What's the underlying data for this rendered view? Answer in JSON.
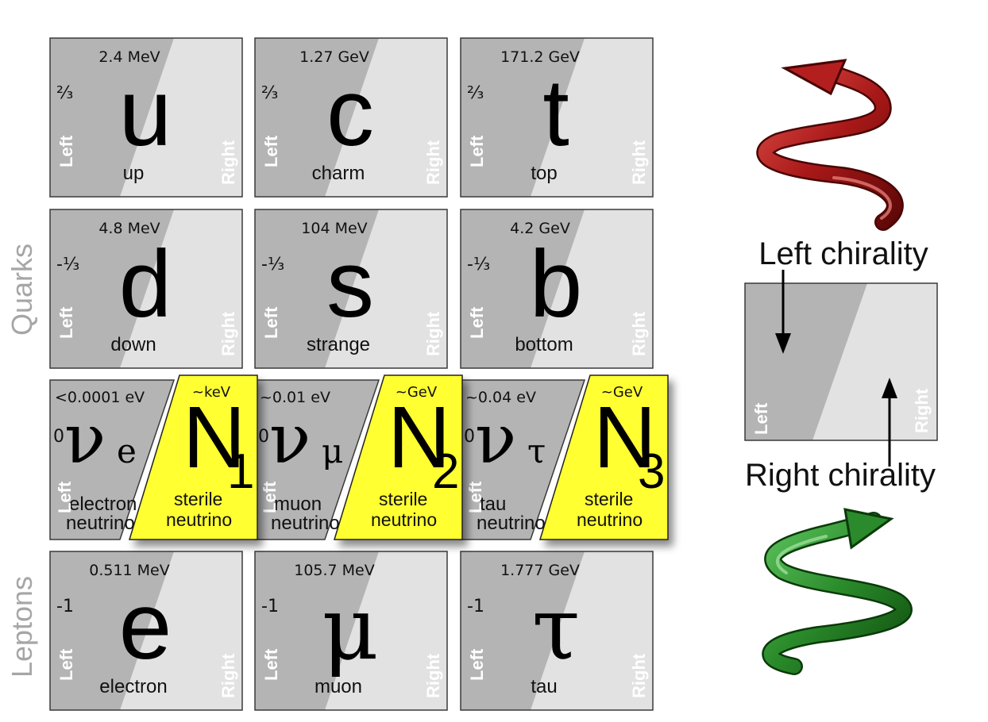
{
  "side_labels": {
    "quarks": "Quarks",
    "leptons": "Leptons"
  },
  "chirality_labels": {
    "left": "Left",
    "right": "Right"
  },
  "quarks": [
    {
      "symbol": "u",
      "name": "up",
      "mass": "2.4 MeV",
      "charge": "²⁄₃"
    },
    {
      "symbol": "c",
      "name": "charm",
      "mass": "1.27 GeV",
      "charge": "²⁄₃"
    },
    {
      "symbol": "t",
      "name": "top",
      "mass": "171.2 GeV",
      "charge": "²⁄₃"
    },
    {
      "symbol": "d",
      "name": "down",
      "mass": "4.8 MeV",
      "charge": "-¹⁄₃"
    },
    {
      "symbol": "s",
      "name": "strange",
      "mass": "104 MeV",
      "charge": "-¹⁄₃"
    },
    {
      "symbol": "b",
      "name": "bottom",
      "mass": "4.2 GeV",
      "charge": "-¹⁄₃"
    }
  ],
  "neutrinos": [
    {
      "symbol": "ν",
      "subscript": "e",
      "mass": "<0.0001 eV",
      "charge": "0",
      "name_line1": "electron",
      "name_line2": "neutrino"
    },
    {
      "symbol": "ν",
      "subscript": "μ",
      "mass": "~0.01 eV",
      "charge": "0",
      "name_line1": "muon",
      "name_line2": "neutrino"
    },
    {
      "symbol": "ν",
      "subscript": "τ",
      "mass": "~0.04 eV",
      "charge": "0",
      "name_line1": "tau",
      "name_line2": "neutrino"
    }
  ],
  "sterile_neutrinos": [
    {
      "symbol": "N",
      "subscript": "1",
      "mass": "~keV",
      "name_line1": "sterile",
      "name_line2": "neutrino"
    },
    {
      "symbol": "N",
      "subscript": "2",
      "mass": "~GeV",
      "name_line1": "sterile",
      "name_line2": "neutrino"
    },
    {
      "symbol": "N",
      "subscript": "3",
      "mass": "~GeV",
      "name_line1": "sterile",
      "name_line2": "neutrino"
    }
  ],
  "leptons": [
    {
      "symbol": "e",
      "name": "electron",
      "mass": "0.511 MeV",
      "charge": "-1"
    },
    {
      "symbol": "μ",
      "name": "muon",
      "mass": "105.7 MeV",
      "charge": "-1"
    },
    {
      "symbol": "τ",
      "name": "tau",
      "mass": "1.777 GeV",
      "charge": "-1"
    }
  ],
  "legend": {
    "left_chirality": "Left chirality",
    "right_chirality": "Right chirality",
    "left": "Left",
    "right": "Right"
  },
  "colors": {
    "card_left": "#b4b4b4",
    "card_right": "#e2e2e2",
    "card_border": "#3a3a3a",
    "sterile": "#ffff33",
    "spiral_left": "#b31f1f",
    "spiral_right": "#2b8a2b",
    "side_label": "#a6a6a6"
  }
}
